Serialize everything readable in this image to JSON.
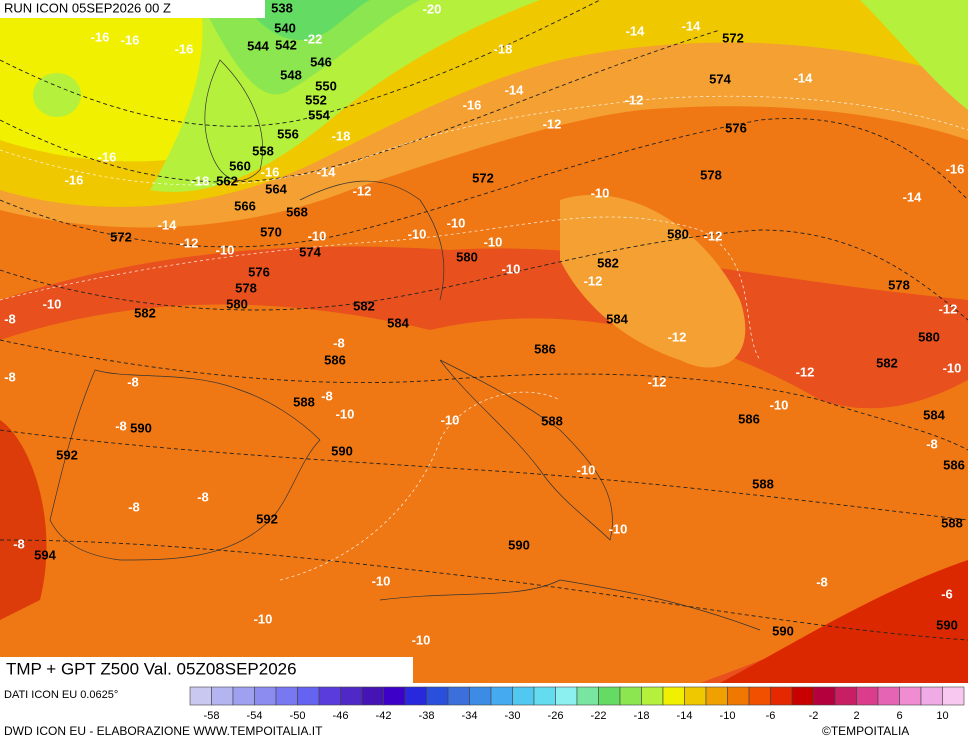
{
  "header": {
    "run": "RUN ICON 05SEP2026 00 Z",
    "title": "TMP + GPT Z500 Val. 05Z08SEP2026",
    "source": "DATI ICON EU 0.0625°",
    "credit": "DWD ICON EU - ELABORAZIONE WWW.TEMPOITALIA.IT",
    "logo": "©TEMPOITALIA"
  },
  "map": {
    "geopotential_labels": [
      538,
      540,
      544,
      542,
      546,
      548,
      550,
      552,
      554,
      556,
      558,
      560,
      562,
      564,
      566,
      568,
      570,
      572,
      574,
      576,
      578,
      580,
      582,
      582,
      584,
      586,
      588,
      590,
      590,
      592,
      592,
      594,
      572,
      574,
      576,
      578,
      580,
      582,
      584,
      586,
      588,
      590,
      578,
      580,
      582,
      584,
      586,
      586,
      588,
      588,
      590,
      590,
      572,
      580
    ],
    "temperature_labels": [
      -20,
      -22,
      -16,
      -16,
      -16,
      -18,
      -14,
      -14,
      -14,
      -16,
      -14,
      -12,
      -12,
      -18,
      -16,
      -16,
      -18,
      -16,
      -14,
      -12,
      -14,
      -12,
      -10,
      -10,
      -10,
      -10,
      -10,
      -10,
      -10,
      -12,
      -12,
      -14,
      -16,
      -10,
      -8,
      -8,
      -8,
      -8,
      -8,
      -10,
      -8,
      -10,
      -12,
      -12,
      -12,
      -12,
      -10,
      -10,
      -8,
      -10,
      -8,
      -8,
      -8,
      -10,
      -10,
      -10,
      -10,
      -8,
      -6
    ],
    "colorbar": {
      "lim": [
        -60,
        12
      ],
      "ticks": [
        -58,
        -54,
        -50,
        -46,
        -42,
        -38,
        -34,
        -30,
        -26,
        -22,
        -18,
        -14,
        -10,
        -6,
        -2,
        2,
        6,
        10
      ],
      "colors": [
        "#c8c8f0",
        "#b4b4f0",
        "#a0a0f0",
        "#8c8cf0",
        "#7878f0",
        "#6464f0",
        "#5a3cdc",
        "#5028c8",
        "#4614b4",
        "#3c00c8",
        "#2828dc",
        "#2850dc",
        "#3c6edc",
        "#3c8ce6",
        "#46aaf0",
        "#50c8f0",
        "#64dcf0",
        "#8cf0f0",
        "#78e6a0",
        "#64dc64",
        "#8ce650",
        "#b4f03c",
        "#f0f000",
        "#f0c800",
        "#f0a000",
        "#f07800",
        "#f05000",
        "#e62800",
        "#c80000",
        "#b4003c",
        "#c81e64",
        "#dc3c8c",
        "#e664b4",
        "#f08cd2",
        "#f0aae6",
        "#f8c8f0"
      ]
    }
  }
}
